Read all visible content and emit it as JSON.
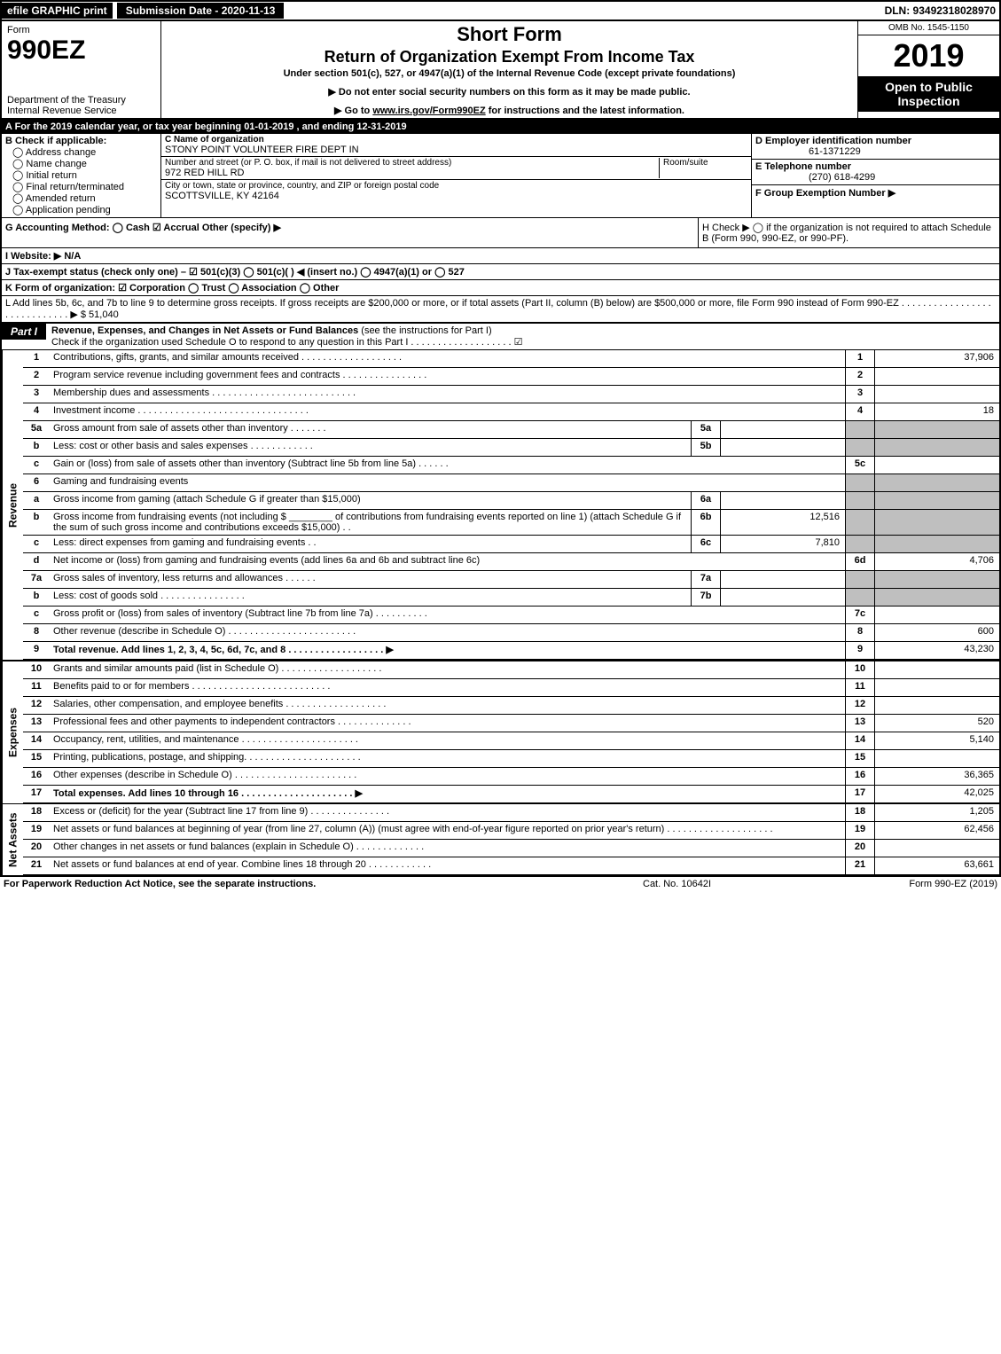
{
  "top": {
    "efile": "efile GRAPHIC print",
    "subdate": "Submission Date - 2020-11-13",
    "dln": "DLN: 93492318028970"
  },
  "header": {
    "form_label": "Form",
    "form_num": "990EZ",
    "dept1": "Department of the Treasury",
    "dept2": "Internal Revenue Service",
    "title1": "Short Form",
    "title2": "Return of Organization Exempt From Income Tax",
    "subtitle": "Under section 501(c), 527, or 4947(a)(1) of the Internal Revenue Code (except private foundations)",
    "note1": "▶ Do not enter social security numbers on this form as it may be made public.",
    "note2_pre": "▶ Go to ",
    "note2_link": "www.irs.gov/Form990EZ",
    "note2_post": " for instructions and the latest information.",
    "omb": "OMB No. 1545-1150",
    "year": "2019",
    "open": "Open to Public Inspection"
  },
  "line_a": "A  For the 2019 calendar year, or tax year beginning 01-01-2019 , and ending 12-31-2019",
  "box_b": {
    "label": "B  Check if applicable:",
    "opts": [
      "Address change",
      "Name change",
      "Initial return",
      "Final return/terminated",
      "Amended return",
      "Application pending"
    ]
  },
  "box_c": {
    "name_label": "C Name of organization",
    "name": "STONY POINT VOLUNTEER FIRE DEPT IN",
    "street_label": "Number and street (or P. O. box, if mail is not delivered to street address)",
    "street": "972 RED HILL RD",
    "room_label": "Room/suite",
    "city_label": "City or town, state or province, country, and ZIP or foreign postal code",
    "city": "SCOTTSVILLE, KY  42164"
  },
  "box_d": {
    "d_label": "D Employer identification number",
    "d_val": "61-1371229",
    "e_label": "E Telephone number",
    "e_val": "(270) 618-4299",
    "f_label": "F Group Exemption Number  ▶"
  },
  "row_g": {
    "g": "G Accounting Method:   ◯ Cash   ☑ Accrual   Other (specify) ▶",
    "h": "H  Check ▶  ◯  if the organization is not required to attach Schedule B (Form 990, 990-EZ, or 990-PF)."
  },
  "row_i": "I Website: ▶ N/A",
  "row_j": "J Tax-exempt status (check only one) – ☑ 501(c)(3)  ◯ 501(c)(  ) ◀ (insert no.)  ◯ 4947(a)(1) or  ◯ 527",
  "row_k": "K Form of organization:   ☑ Corporation   ◯ Trust   ◯ Association   ◯ Other",
  "row_l": "L Add lines 5b, 6c, and 7b to line 9 to determine gross receipts. If gross receipts are $200,000 or more, or if total assets (Part II, column (B) below) are $500,000 or more, file Form 990 instead of Form 990-EZ  .  .  .  .  .  .  .  .  .  .  .  .  .  .  .  .  .  .  .  .  .  .  .  .  .  .  .  .  .  ▶ $ 51,040",
  "part1": {
    "tag": "Part I",
    "title_bold": "Revenue, Expenses, and Changes in Net Assets or Fund Balances",
    "title_rest": " (see the instructions for Part I)",
    "sub": "Check if the organization used Schedule O to respond to any question in this Part I  .  .  .  .  .  .  .  .  .  .  .  .  .  .  .  .  .  .  .  ",
    "checked": "☑"
  },
  "sides": {
    "rev": "Revenue",
    "exp": "Expenses",
    "net": "Net Assets"
  },
  "revenue": [
    {
      "ln": "1",
      "desc": "Contributions, gifts, grants, and similar amounts received  .  .  .  .  .  .  .  .  .  .  .  .  .  .  .  .  .  .  .",
      "rln": "1",
      "rval": "37,906"
    },
    {
      "ln": "2",
      "desc": "Program service revenue including government fees and contracts  .  .  .  .  .  .  .  .  .  .  .  .  .  .  .  .",
      "rln": "2",
      "rval": ""
    },
    {
      "ln": "3",
      "desc": "Membership dues and assessments  .  .  .  .  .  .  .  .  .  .  .  .  .  .  .  .  .  .  .  .  .  .  .  .  .  .  .",
      "rln": "3",
      "rval": ""
    },
    {
      "ln": "4",
      "desc": "Investment income  .  .  .  .  .  .  .  .  .  .  .  .  .  .  .  .  .  .  .  .  .  .  .  .  .  .  .  .  .  .  .  .",
      "rln": "4",
      "rval": "18"
    },
    {
      "ln": "5a",
      "desc": "Gross amount from sale of assets other than inventory  .  .  .  .  .  .  .",
      "mln": "5a",
      "mval": "",
      "shade": true
    },
    {
      "ln": "b",
      "desc": "Less: cost or other basis and sales expenses  .  .  .  .  .  .  .  .  .  .  .  .",
      "mln": "5b",
      "mval": "",
      "shade": true
    },
    {
      "ln": "c",
      "desc": "Gain or (loss) from sale of assets other than inventory (Subtract line 5b from line 5a)  .  .  .  .  .  .",
      "rln": "5c",
      "rval": ""
    },
    {
      "ln": "6",
      "desc": "Gaming and fundraising events",
      "shade": true,
      "noright": true
    },
    {
      "ln": "a",
      "desc": "Gross income from gaming (attach Schedule G if greater than $15,000)",
      "mln": "6a",
      "mval": "",
      "shade": true
    },
    {
      "ln": "b",
      "desc": "Gross income from fundraising events (not including $ ________ of contributions from fundraising events reported on line 1) (attach Schedule G if the sum of such gross income and contributions exceeds $15,000)   .  .",
      "mln": "6b",
      "mval": "12,516",
      "shade": true
    },
    {
      "ln": "c",
      "desc": "Less: direct expenses from gaming and fundraising events    .  .",
      "mln": "6c",
      "mval": "7,810",
      "shade": true
    },
    {
      "ln": "d",
      "desc": "Net income or (loss) from gaming and fundraising events (add lines 6a and 6b and subtract line 6c)",
      "rln": "6d",
      "rval": "4,706"
    },
    {
      "ln": "7a",
      "desc": "Gross sales of inventory, less returns and allowances  .  .  .  .  .  .",
      "mln": "7a",
      "mval": "",
      "shade": true
    },
    {
      "ln": "b",
      "desc": "Less: cost of goods sold    .  .  .  .  .  .  .  .  .  .  .  .  .  .  .  .",
      "mln": "7b",
      "mval": "",
      "shade": true
    },
    {
      "ln": "c",
      "desc": "Gross profit or (loss) from sales of inventory (Subtract line 7b from line 7a)  .  .  .  .  .  .  .  .  .  .",
      "rln": "7c",
      "rval": ""
    },
    {
      "ln": "8",
      "desc": "Other revenue (describe in Schedule O)  .  .  .  .  .  .  .  .  .  .  .  .  .  .  .  .  .  .  .  .  .  .  .  .",
      "rln": "8",
      "rval": "600"
    },
    {
      "ln": "9",
      "desc": "Total revenue. Add lines 1, 2, 3, 4, 5c, 6d, 7c, and 8  .  .  .  .  .  .  .  .  .  .  .  .  .  .  .  .  .  .  ▶",
      "rln": "9",
      "rval": "43,230",
      "bold": true
    }
  ],
  "expenses": [
    {
      "ln": "10",
      "desc": "Grants and similar amounts paid (list in Schedule O)  .  .  .  .  .  .  .  .  .  .  .  .  .  .  .  .  .  .  .",
      "rln": "10",
      "rval": ""
    },
    {
      "ln": "11",
      "desc": "Benefits paid to or for members  .  .  .  .  .  .  .  .  .  .  .  .  .  .  .  .  .  .  .  .  .  .  .  .  .  .",
      "rln": "11",
      "rval": ""
    },
    {
      "ln": "12",
      "desc": "Salaries, other compensation, and employee benefits  .  .  .  .  .  .  .  .  .  .  .  .  .  .  .  .  .  .  .",
      "rln": "12",
      "rval": ""
    },
    {
      "ln": "13",
      "desc": "Professional fees and other payments to independent contractors  .  .  .  .  .  .  .  .  .  .  .  .  .  .",
      "rln": "13",
      "rval": "520"
    },
    {
      "ln": "14",
      "desc": "Occupancy, rent, utilities, and maintenance  .  .  .  .  .  .  .  .  .  .  .  .  .  .  .  .  .  .  .  .  .  .",
      "rln": "14",
      "rval": "5,140"
    },
    {
      "ln": "15",
      "desc": "Printing, publications, postage, and shipping.  .  .  .  .  .  .  .  .  .  .  .  .  .  .  .  .  .  .  .  .  .",
      "rln": "15",
      "rval": ""
    },
    {
      "ln": "16",
      "desc": "Other expenses (describe in Schedule O)  .  .  .  .  .  .  .  .  .  .  .  .  .  .  .  .  .  .  .  .  .  .  .",
      "rln": "16",
      "rval": "36,365"
    },
    {
      "ln": "17",
      "desc": "Total expenses. Add lines 10 through 16  .  .  .  .  .  .  .  .  .  .  .  .  .  .  .  .  .  .  .  .  .  ▶",
      "rln": "17",
      "rval": "42,025",
      "bold": true
    }
  ],
  "netassets": [
    {
      "ln": "18",
      "desc": "Excess or (deficit) for the year (Subtract line 17 from line 9)    .  .  .  .  .  .  .  .  .  .  .  .  .  .  .",
      "rln": "18",
      "rval": "1,205"
    },
    {
      "ln": "19",
      "desc": "Net assets or fund balances at beginning of year (from line 27, column (A)) (must agree with end-of-year figure reported on prior year's return)  .  .  .  .  .  .  .  .  .  .  .  .  .  .  .  .  .  .  .  .",
      "rln": "19",
      "rval": "62,456"
    },
    {
      "ln": "20",
      "desc": "Other changes in net assets or fund balances (explain in Schedule O)  .  .  .  .  .  .  .  .  .  .  .  .  .",
      "rln": "20",
      "rval": ""
    },
    {
      "ln": "21",
      "desc": "Net assets or fund balances at end of year. Combine lines 18 through 20  .  .  .  .  .  .  .  .  .  .  .  .",
      "rln": "21",
      "rval": "63,661"
    }
  ],
  "footer": {
    "paperwork": "For Paperwork Reduction Act Notice, see the separate instructions.",
    "cat": "Cat. No. 10642I",
    "form": "Form 990-EZ (2019)"
  }
}
